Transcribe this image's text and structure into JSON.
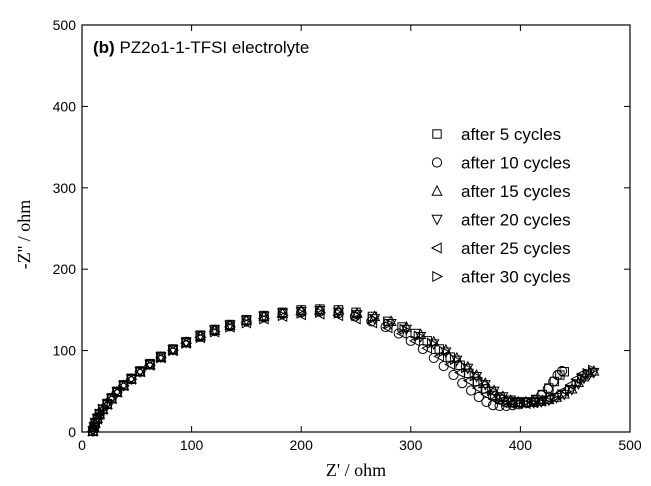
{
  "chart_data": {
    "type": "scatter",
    "panel_tag": "(b)",
    "title": "PZ2o1-1-TFSI electrolyte",
    "xlabel": "Z' / ohm",
    "ylabel": "-Z'' / ohm",
    "xlim": [
      0,
      500
    ],
    "ylim": [
      0,
      500
    ],
    "xticks": [
      0,
      100,
      200,
      300,
      400,
      500
    ],
    "yticks": [
      0,
      100,
      200,
      300,
      400,
      500
    ],
    "grid": false,
    "legend_position": "right",
    "series": [
      {
        "name": "after 5 cycles",
        "marker": "square",
        "points": [
          [
            10,
            1
          ],
          [
            11,
            6
          ],
          [
            12,
            11
          ],
          [
            14,
            17
          ],
          [
            16,
            22
          ],
          [
            19,
            28
          ],
          [
            23,
            35
          ],
          [
            27,
            42
          ],
          [
            32,
            50
          ],
          [
            38,
            58
          ],
          [
            45,
            66
          ],
          [
            53,
            75
          ],
          [
            62,
            84
          ],
          [
            72,
            93
          ],
          [
            83,
            102
          ],
          [
            95,
            111
          ],
          [
            108,
            119
          ],
          [
            121,
            126
          ],
          [
            135,
            132
          ],
          [
            150,
            138
          ],
          [
            166,
            143
          ],
          [
            183,
            147
          ],
          [
            200,
            150
          ],
          [
            217,
            151
          ],
          [
            234,
            150
          ],
          [
            250,
            147
          ],
          [
            265,
            142
          ],
          [
            279,
            136
          ],
          [
            292,
            129
          ],
          [
            304,
            121
          ],
          [
            315,
            112
          ],
          [
            326,
            102
          ],
          [
            336,
            92
          ],
          [
            345,
            82
          ],
          [
            353,
            72
          ],
          [
            361,
            62
          ],
          [
            368,
            53
          ],
          [
            375,
            45
          ],
          [
            381,
            40
          ],
          [
            387,
            37
          ],
          [
            393,
            36
          ],
          [
            400,
            36
          ],
          [
            407,
            37
          ],
          [
            414,
            40
          ],
          [
            420,
            46
          ],
          [
            426,
            54
          ],
          [
            431,
            62
          ],
          [
            436,
            70
          ],
          [
            440,
            74
          ]
        ]
      },
      {
        "name": "after 10 cycles",
        "marker": "circle",
        "points": [
          [
            10,
            1
          ],
          [
            11,
            6
          ],
          [
            12,
            11
          ],
          [
            14,
            16
          ],
          [
            16,
            22
          ],
          [
            19,
            28
          ],
          [
            23,
            34
          ],
          [
            27,
            41
          ],
          [
            32,
            49
          ],
          [
            38,
            57
          ],
          [
            45,
            65
          ],
          [
            53,
            74
          ],
          [
            62,
            83
          ],
          [
            72,
            92
          ],
          [
            83,
            101
          ],
          [
            95,
            110
          ],
          [
            108,
            117
          ],
          [
            121,
            124
          ],
          [
            135,
            130
          ],
          [
            150,
            136
          ],
          [
            166,
            141
          ],
          [
            183,
            145
          ],
          [
            200,
            147
          ],
          [
            217,
            148
          ],
          [
            234,
            146
          ],
          [
            249,
            142
          ],
          [
            264,
            136
          ],
          [
            277,
            129
          ],
          [
            289,
            121
          ],
          [
            300,
            112
          ],
          [
            311,
            102
          ],
          [
            321,
            91
          ],
          [
            330,
            81
          ],
          [
            339,
            70
          ],
          [
            347,
            60
          ],
          [
            355,
            51
          ],
          [
            362,
            43
          ],
          [
            369,
            37
          ],
          [
            375,
            33
          ],
          [
            381,
            32
          ],
          [
            387,
            32
          ],
          [
            393,
            33
          ],
          [
            399,
            34
          ],
          [
            406,
            36
          ],
          [
            413,
            39
          ],
          [
            419,
            45
          ],
          [
            425,
            53
          ],
          [
            430,
            62
          ],
          [
            434,
            70
          ],
          [
            438,
            75
          ]
        ]
      },
      {
        "name": "after 15 cycles",
        "marker": "triangle-up",
        "points": [
          [
            10,
            1
          ],
          [
            11,
            6
          ],
          [
            12,
            11
          ],
          [
            14,
            17
          ],
          [
            16,
            22
          ],
          [
            19,
            28
          ],
          [
            23,
            34
          ],
          [
            27,
            41
          ],
          [
            32,
            49
          ],
          [
            38,
            57
          ],
          [
            45,
            65
          ],
          [
            53,
            74
          ],
          [
            62,
            83
          ],
          [
            72,
            92
          ],
          [
            83,
            101
          ],
          [
            95,
            110
          ],
          [
            108,
            118
          ],
          [
            121,
            125
          ],
          [
            135,
            131
          ],
          [
            150,
            137
          ],
          [
            166,
            142
          ],
          [
            183,
            146
          ],
          [
            200,
            149
          ],
          [
            217,
            150
          ],
          [
            234,
            149
          ],
          [
            251,
            146
          ],
          [
            267,
            142
          ],
          [
            282,
            136
          ],
          [
            296,
            129
          ],
          [
            309,
            120
          ],
          [
            321,
            111
          ],
          [
            332,
            101
          ],
          [
            342,
            91
          ],
          [
            352,
            80
          ],
          [
            360,
            70
          ],
          [
            368,
            60
          ],
          [
            376,
            51
          ],
          [
            384,
            44
          ],
          [
            391,
            39
          ],
          [
            398,
            37
          ],
          [
            405,
            37
          ],
          [
            412,
            37
          ],
          [
            419,
            38
          ],
          [
            426,
            40
          ],
          [
            433,
            43
          ],
          [
            440,
            47
          ],
          [
            447,
            53
          ],
          [
            453,
            61
          ],
          [
            458,
            68
          ],
          [
            463,
            73
          ],
          [
            467,
            75
          ]
        ]
      },
      {
        "name": "after 20 cycles",
        "marker": "triangle-down",
        "points": [
          [
            10,
            1
          ],
          [
            11,
            6
          ],
          [
            12,
            11
          ],
          [
            14,
            16
          ],
          [
            16,
            22
          ],
          [
            19,
            28
          ],
          [
            23,
            34
          ],
          [
            27,
            41
          ],
          [
            32,
            49
          ],
          [
            38,
            57
          ],
          [
            45,
            65
          ],
          [
            53,
            74
          ],
          [
            62,
            83
          ],
          [
            72,
            92
          ],
          [
            83,
            101
          ],
          [
            95,
            110
          ],
          [
            108,
            118
          ],
          [
            121,
            125
          ],
          [
            135,
            131
          ],
          [
            150,
            137
          ],
          [
            166,
            142
          ],
          [
            183,
            146
          ],
          [
            200,
            148
          ],
          [
            217,
            149
          ],
          [
            234,
            147
          ],
          [
            251,
            144
          ],
          [
            267,
            139
          ],
          [
            282,
            133
          ],
          [
            296,
            126
          ],
          [
            309,
            117
          ],
          [
            321,
            108
          ],
          [
            332,
            98
          ],
          [
            342,
            88
          ],
          [
            352,
            78
          ],
          [
            360,
            68
          ],
          [
            368,
            58
          ],
          [
            376,
            50
          ],
          [
            384,
            43
          ],
          [
            391,
            39
          ],
          [
            398,
            37
          ],
          [
            405,
            36
          ],
          [
            412,
            36
          ],
          [
            419,
            37
          ],
          [
            426,
            39
          ],
          [
            433,
            42
          ],
          [
            440,
            46
          ],
          [
            447,
            52
          ],
          [
            453,
            59
          ],
          [
            458,
            66
          ],
          [
            463,
            71
          ],
          [
            467,
            73
          ]
        ]
      },
      {
        "name": "after 25 cycles",
        "marker": "triangle-left",
        "points": [
          [
            10,
            1
          ],
          [
            11,
            6
          ],
          [
            12,
            11
          ],
          [
            14,
            16
          ],
          [
            16,
            22
          ],
          [
            19,
            28
          ],
          [
            23,
            34
          ],
          [
            27,
            41
          ],
          [
            32,
            49
          ],
          [
            38,
            57
          ],
          [
            45,
            65
          ],
          [
            53,
            74
          ],
          [
            62,
            82
          ],
          [
            72,
            91
          ],
          [
            83,
            100
          ],
          [
            95,
            109
          ],
          [
            108,
            116
          ],
          [
            121,
            123
          ],
          [
            135,
            129
          ],
          [
            150,
            134
          ],
          [
            166,
            139
          ],
          [
            183,
            142
          ],
          [
            200,
            144
          ],
          [
            217,
            145
          ],
          [
            234,
            143
          ],
          [
            250,
            139
          ],
          [
            265,
            134
          ],
          [
            279,
            128
          ],
          [
            292,
            121
          ],
          [
            304,
            112
          ],
          [
            315,
            103
          ],
          [
            326,
            93
          ],
          [
            336,
            83
          ],
          [
            345,
            73
          ],
          [
            353,
            63
          ],
          [
            361,
            54
          ],
          [
            369,
            46
          ],
          [
            377,
            40
          ],
          [
            384,
            36
          ],
          [
            391,
            35
          ],
          [
            398,
            35
          ],
          [
            405,
            35
          ],
          [
            412,
            36
          ],
          [
            419,
            38
          ],
          [
            426,
            41
          ],
          [
            433,
            45
          ],
          [
            440,
            51
          ],
          [
            446,
            58
          ],
          [
            451,
            65
          ],
          [
            456,
            71
          ]
        ]
      },
      {
        "name": "after 30 cycles",
        "marker": "triangle-right",
        "points": [
          [
            10,
            1
          ],
          [
            11,
            6
          ],
          [
            12,
            11
          ],
          [
            14,
            16
          ],
          [
            16,
            22
          ],
          [
            19,
            28
          ],
          [
            23,
            34
          ],
          [
            27,
            41
          ],
          [
            32,
            49
          ],
          [
            38,
            57
          ],
          [
            45,
            65
          ],
          [
            53,
            74
          ],
          [
            62,
            82
          ],
          [
            72,
            91
          ],
          [
            83,
            100
          ],
          [
            95,
            109
          ],
          [
            108,
            116
          ],
          [
            121,
            123
          ],
          [
            135,
            129
          ],
          [
            150,
            134
          ],
          [
            166,
            139
          ],
          [
            183,
            143
          ],
          [
            200,
            146
          ],
          [
            217,
            147
          ],
          [
            234,
            146
          ],
          [
            250,
            143
          ],
          [
            265,
            139
          ],
          [
            280,
            133
          ],
          [
            294,
            126
          ],
          [
            307,
            118
          ],
          [
            319,
            109
          ],
          [
            330,
            99
          ],
          [
            340,
            89
          ],
          [
            350,
            79
          ],
          [
            358,
            69
          ],
          [
            366,
            60
          ],
          [
            374,
            51
          ],
          [
            382,
            44
          ],
          [
            389,
            39
          ],
          [
            396,
            37
          ],
          [
            403,
            36
          ],
          [
            410,
            36
          ],
          [
            417,
            37
          ],
          [
            424,
            39
          ],
          [
            431,
            42
          ],
          [
            438,
            46
          ],
          [
            445,
            52
          ],
          [
            451,
            59
          ],
          [
            456,
            66
          ],
          [
            461,
            72
          ],
          [
            466,
            76
          ]
        ]
      }
    ]
  }
}
